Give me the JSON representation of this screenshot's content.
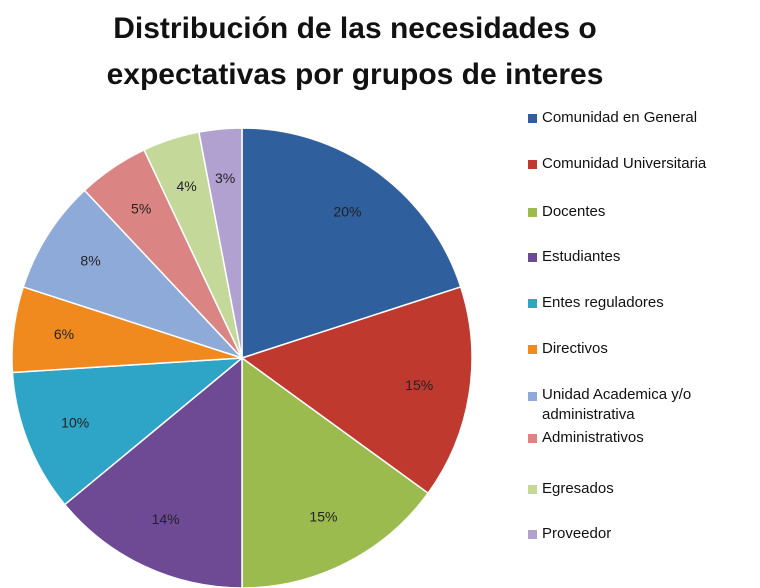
{
  "chart_data": {
    "type": "pie",
    "title": "Distribución de las necesidades o expectativas por grupos de interes",
    "categories": [
      "Comunidad en General",
      "Comunidad Universitaria",
      "Docentes",
      "Estudiantes",
      "Entes reguladores",
      "Directivos",
      "Unidad Academica y/o administrativa",
      "Administrativos",
      "Egresados",
      "Proveedor"
    ],
    "values": [
      20,
      15,
      15,
      14,
      10,
      6,
      8,
      5,
      4,
      3
    ],
    "value_labels": [
      "20%",
      "15%",
      "15%",
      "14%",
      "10%",
      "6%",
      "8%",
      "5%",
      "4%",
      "3%"
    ],
    "colors": [
      "#2f5f9c",
      "#c0392f",
      "#9bbb4f",
      "#6e4a95",
      "#2ea4c6",
      "#f08a1e",
      "#8eaad8",
      "#da8584",
      "#c3d899",
      "#b1a1d0"
    ],
    "legend": "right"
  }
}
